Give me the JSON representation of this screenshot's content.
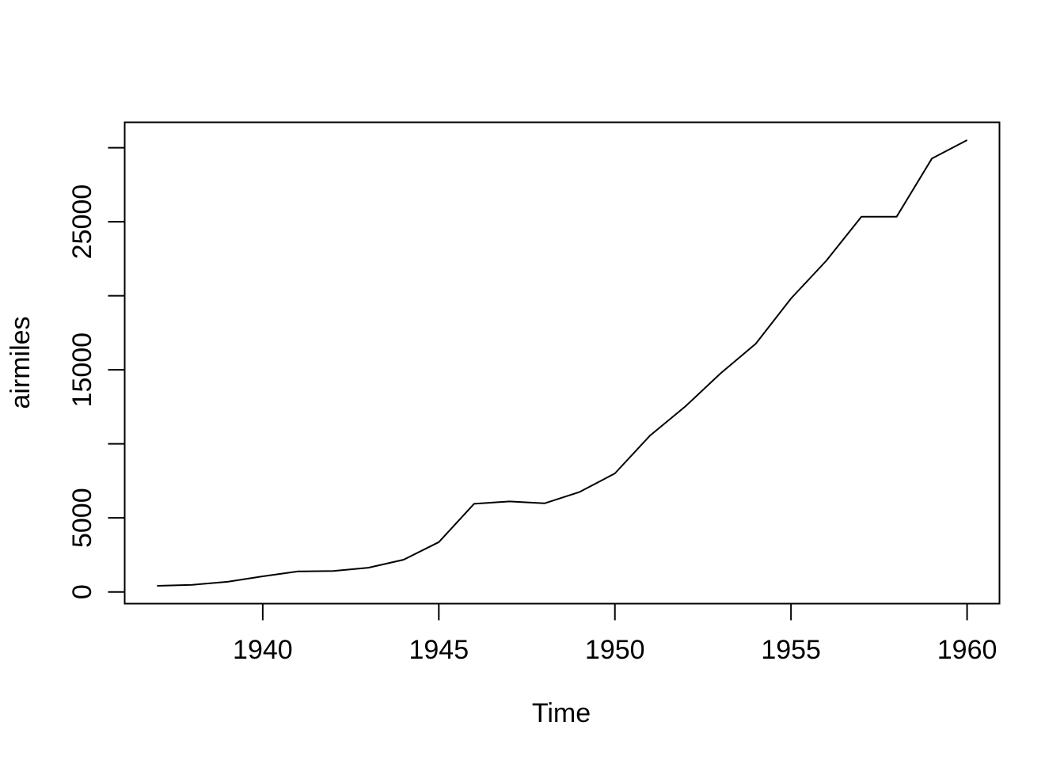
{
  "figure": {
    "background": "#ffffff",
    "line_color": "#000000",
    "text_color": "#000000"
  },
  "chart_data": {
    "type": "line",
    "title": "",
    "xlabel": "Time",
    "ylabel": "airmiles",
    "x": [
      1937,
      1938,
      1939,
      1940,
      1941,
      1942,
      1943,
      1944,
      1945,
      1946,
      1947,
      1948,
      1949,
      1950,
      1951,
      1952,
      1953,
      1954,
      1955,
      1956,
      1957,
      1958,
      1959,
      1960
    ],
    "series": [
      {
        "name": "airmiles",
        "values": [
          412,
          480,
          683,
          1052,
          1385,
          1418,
          1634,
          2178,
          3362,
          5948,
          6109,
          5981,
          6753,
          8003,
          10566,
          12528,
          14760,
          16769,
          19819,
          22362,
          25340,
          25343,
          29269,
          30514
        ]
      }
    ],
    "xlim": [
      1936.08,
      1960.92
    ],
    "ylim": [
      -792,
      31718
    ],
    "x_ticks": [
      1940,
      1945,
      1950,
      1955,
      1960
    ],
    "x_tick_labels": [
      "1940",
      "1945",
      "1950",
      "1955",
      "1960"
    ],
    "y_ticks": [
      0,
      5000,
      10000,
      15000,
      20000,
      25000,
      30000
    ],
    "y_tick_labels": [
      "0",
      "5000",
      "",
      "15000",
      "",
      "25000",
      ""
    ],
    "grid": false,
    "legend": "none"
  }
}
